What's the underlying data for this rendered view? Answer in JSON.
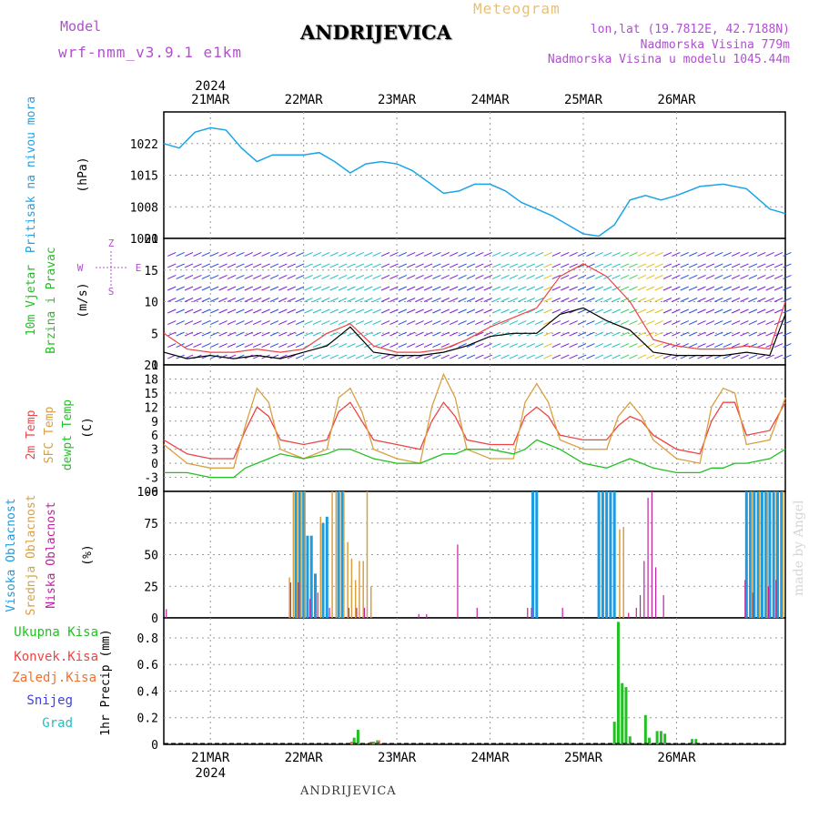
{
  "header": {
    "model_label": "Model",
    "model_version": "wrf-nmm_v3.9.1 e1km",
    "title": "ANDRIJEVICA",
    "meteogram": "Meteogram",
    "coords": "lon,lat (19.7812E, 42.7188N)",
    "elevation": "Nadmorska Visina 779m",
    "model_elevation": "Nadmorska Visina u modelu 1045.44m"
  },
  "footer": {
    "station": "ANDRIJEVICA",
    "watermark": "made by Angel"
  },
  "colors": {
    "pressure": "#1ba4e8",
    "temp2m": "#ee4444",
    "sfc": "#d9a040",
    "dewpt": "#22c022",
    "high_cloud": "#1b9be0",
    "mid_cloud": "#d9a040",
    "low_cloud": "#c020a0",
    "precip": "#22c022",
    "gust": "#ee4444",
    "wind": "#000000"
  },
  "chart_data": [
    {
      "type": "line",
      "panel": "pressure",
      "ylabel_main": "Pritisak na nivou mora",
      "unit": "(hPa)",
      "ylim": [
        1001,
        1029
      ],
      "yticks": [
        1001,
        1008,
        1015,
        1022
      ],
      "x_hours": [
        0,
        4,
        8,
        12,
        16,
        20,
        24,
        28,
        32,
        36,
        40,
        44,
        48,
        52,
        56,
        60,
        64,
        68,
        72,
        76,
        80,
        84,
        88,
        92,
        96,
        100,
        104,
        108,
        112,
        116,
        120,
        124,
        128,
        132,
        138,
        144,
        150,
        156,
        160
      ],
      "values": [
        1022,
        1021,
        1024.5,
        1025.5,
        1025,
        1021,
        1018,
        1019.5,
        1019.5,
        1019.5,
        1020,
        1018,
        1015.5,
        1017.5,
        1018,
        1017.5,
        1016,
        1013.5,
        1011,
        1011.5,
        1013,
        1013,
        1011.5,
        1009,
        1007.5,
        1006,
        1004,
        1002,
        1001.5,
        1004,
        1009.5,
        1010.5,
        1009.5,
        1010.5,
        1012.5,
        1013,
        1012,
        1007.5,
        1006.5
      ],
      "grid": true
    },
    {
      "type": "line",
      "panel": "wind",
      "ylabel_main": "10m Vjetar",
      "ylabel_sub": "Brzina i Pravac",
      "unit": "(m/s)",
      "direction_legend": [
        "Z",
        "W",
        "E",
        "S"
      ],
      "ylim": [
        0,
        20
      ],
      "yticks": [
        0,
        5,
        10,
        15,
        20
      ],
      "x_hours": [
        0,
        6,
        12,
        18,
        24,
        30,
        36,
        42,
        48,
        54,
        60,
        66,
        72,
        78,
        84,
        90,
        96,
        102,
        108,
        114,
        120,
        126,
        132,
        138,
        144,
        150,
        156,
        160
      ],
      "series": [
        {
          "name": "speed",
          "values": [
            2,
            1,
            1.5,
            1,
            1.5,
            1,
            2,
            3,
            6,
            2,
            1.5,
            1.5,
            2,
            3,
            4.5,
            5,
            5,
            8,
            9,
            7,
            5.5,
            2,
            1.5,
            1.5,
            1.5,
            2,
            1.5,
            8
          ]
        },
        {
          "name": "gust",
          "values": [
            5,
            2.5,
            2,
            2,
            2.5,
            2,
            2.5,
            5,
            6.5,
            3,
            2,
            2,
            2.5,
            4,
            6,
            7.5,
            9,
            14,
            16,
            14,
            10,
            4,
            3,
            2.5,
            2.5,
            3,
            2.5,
            10
          ]
        }
      ],
      "grid": true
    },
    {
      "type": "line",
      "panel": "temperature",
      "ylabel_main": [
        "2m Temp",
        "SFC Temp",
        "dewpt Temp"
      ],
      "unit": "(C)",
      "ylim": [
        -6,
        21
      ],
      "yticks": [
        -6,
        -3,
        0,
        3,
        6,
        9,
        12,
        15,
        18,
        21
      ],
      "x_hours": [
        0,
        6,
        12,
        18,
        21,
        24,
        27,
        30,
        36,
        42,
        45,
        48,
        51,
        54,
        60,
        66,
        69,
        72,
        75,
        78,
        84,
        90,
        93,
        96,
        99,
        102,
        108,
        114,
        117,
        120,
        123,
        126,
        132,
        138,
        141,
        144,
        147,
        150,
        156,
        160
      ],
      "series": [
        {
          "name": "2m Temp",
          "values": [
            5,
            2,
            1,
            1,
            7,
            12,
            10,
            5,
            4,
            5,
            11,
            13,
            9,
            5,
            4,
            3,
            9,
            13,
            10,
            5,
            4,
            4,
            10,
            12,
            10,
            6,
            5,
            5,
            8,
            10,
            9,
            6,
            3,
            2,
            9,
            13,
            13,
            6,
            7,
            13
          ]
        },
        {
          "name": "SFC Temp",
          "values": [
            4,
            0,
            -1,
            -1,
            8,
            16,
            13,
            3,
            1,
            3,
            14,
            16,
            11,
            3,
            1,
            0,
            12,
            19,
            14,
            3,
            1,
            1,
            13,
            17,
            13,
            5,
            3,
            3,
            10,
            13,
            10,
            5,
            1,
            0,
            12,
            16,
            15,
            4,
            5,
            14
          ]
        },
        {
          "name": "dewpt Temp",
          "values": [
            -2,
            -2,
            -3,
            -3,
            -1,
            0,
            1,
            2,
            1,
            2,
            3,
            3,
            2,
            1,
            0,
            0,
            1,
            2,
            2,
            3,
            3,
            2,
            3,
            5,
            4,
            3,
            0,
            -1,
            0,
            1,
            0,
            -1,
            -2,
            -2,
            -1,
            -1,
            0,
            0,
            1,
            3
          ]
        }
      ],
      "grid": true
    },
    {
      "type": "bar",
      "panel": "cloud",
      "ylabel_main": [
        "Visoka Oblacnost",
        "Srednja Oblacnost",
        "Niska Oblacnost"
      ],
      "unit": "(%)",
      "ylim": [
        0,
        100
      ],
      "yticks": [
        0,
        25,
        50,
        75,
        100
      ],
      "series": [
        {
          "name": "high",
          "x_hours": [
            34,
            35,
            36,
            37,
            38,
            39,
            41,
            42,
            45,
            46,
            95,
            96,
            112,
            113,
            114,
            115,
            116,
            150,
            151,
            152,
            153,
            154,
            155,
            156,
            157,
            158,
            159
          ],
          "values": [
            100,
            100,
            100,
            65,
            65,
            35,
            75,
            80,
            100,
            100,
            100,
            100,
            100,
            100,
            100,
            100,
            100,
            100,
            100,
            100,
            100,
            100,
            100,
            100,
            100,
            100,
            100
          ]
        },
        {
          "name": "mid",
          "x_hours": [
            32,
            33,
            34,
            35,
            36,
            40,
            43,
            44,
            45,
            46,
            47,
            48,
            49,
            50,
            51,
            52,
            53,
            117,
            118,
            151,
            153,
            155,
            157,
            159
          ],
          "values": [
            32,
            100,
            100,
            100,
            100,
            80,
            100,
            100,
            100,
            100,
            60,
            47,
            30,
            45,
            45,
            100,
            25,
            70,
            72,
            100,
            100,
            100,
            100,
            100
          ]
        },
        {
          "name": "low",
          "x_hours": [
            1,
            33,
            35,
            38,
            40,
            43,
            48,
            50,
            52,
            66,
            68,
            76,
            81,
            94,
            95,
            103,
            120,
            122,
            123,
            124,
            125,
            126,
            127,
            129,
            150,
            152,
            156,
            158
          ],
          "values": [
            7,
            28,
            28,
            15,
            20,
            8,
            8,
            8,
            8,
            3,
            3,
            58,
            8,
            8,
            8,
            8,
            4,
            8,
            18,
            45,
            95,
            100,
            40,
            18,
            30,
            20,
            25,
            30
          ]
        }
      ],
      "grid": true
    },
    {
      "type": "bar",
      "panel": "precipitation",
      "ylabel_main": "1hr Precip",
      "unit": "(mm)",
      "legend": [
        "Ukupna Kisa",
        "Konvek.Kisa",
        "Zaledj.Kisa",
        "Snijeg",
        "Grad"
      ],
      "ylim": [
        0,
        0.95
      ],
      "yticks": [
        0,
        0.2,
        0.4,
        0.6,
        0.8
      ],
      "series": [
        {
          "name": "Ukupna Kisa",
          "x_hours": [
            49,
            50,
            54,
            55,
            116,
            117,
            118,
            119,
            120,
            124,
            125,
            127,
            128,
            129,
            136,
            137
          ],
          "values": [
            0.05,
            0.11,
            0.02,
            0.03,
            0.17,
            0.92,
            0.46,
            0.43,
            0.06,
            0.22,
            0.05,
            0.1,
            0.1,
            0.08,
            0.04,
            0.04
          ]
        },
        {
          "name": "Zaledj.Kisa",
          "x_hours": [
            48,
            53,
            55
          ],
          "values": [
            0.02,
            0.02,
            0.03
          ]
        }
      ],
      "grid": true
    }
  ],
  "time_axis": {
    "year": "2024",
    "labels": [
      "21MAR",
      "22MAR",
      "23MAR",
      "24MAR",
      "25MAR",
      "26MAR"
    ],
    "label_hours": [
      12,
      36,
      60,
      84,
      108,
      132
    ]
  }
}
